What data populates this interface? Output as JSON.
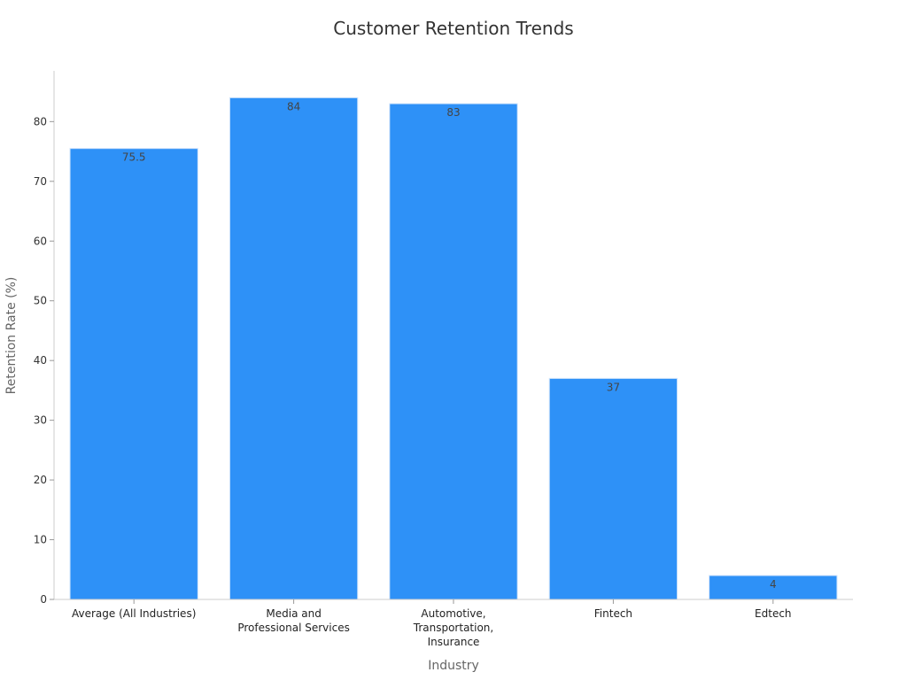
{
  "chart_data": {
    "type": "bar",
    "title": "Customer Retention Trends",
    "xlabel": "Industry",
    "ylabel": "Retention Rate (%)",
    "categories": [
      [
        "Average (All Industries)"
      ],
      [
        "Media and",
        "Professional Services"
      ],
      [
        "Automotive,",
        "Transportation,",
        "Insurance"
      ],
      [
        "Fintech"
      ],
      [
        "Edtech"
      ]
    ],
    "values": [
      75.5,
      84,
      83,
      37,
      4
    ],
    "value_labels": [
      "75.5",
      "84",
      "83",
      "37",
      "4"
    ],
    "yticks": [
      0,
      10,
      20,
      30,
      40,
      50,
      60,
      70,
      80
    ],
    "ylim": [
      0,
      88.5
    ],
    "bar_color": "#2e91f7",
    "grid": false,
    "legend": false
  }
}
